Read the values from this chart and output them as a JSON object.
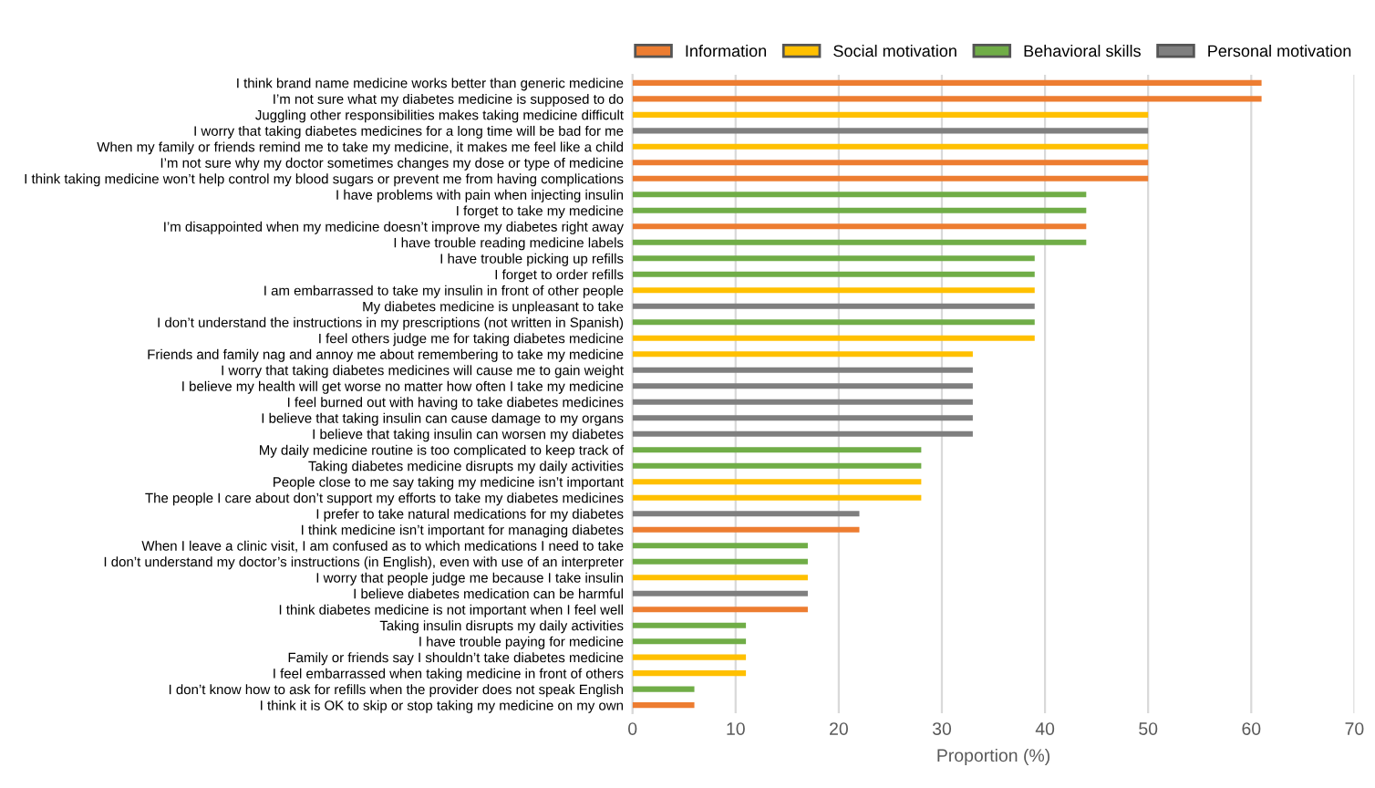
{
  "chart_data": {
    "type": "bar",
    "orientation": "horizontal",
    "xlabel": "Proportion (%)",
    "categories": [
      "I think brand name medicine works better than generic medicine",
      "I’m not sure what my diabetes medicine is supposed to do",
      "Juggling other responsibilities makes taking medicine difficult",
      "I worry that taking diabetes medicines for a long time will be bad for me",
      "When my family or friends remind me to take my medicine, it makes me feel like a child",
      "I’m not sure why my doctor sometimes changes my dose or type of medicine",
      "I think taking medicine won’t help control my blood sugars or prevent me from having complications",
      "I have problems with pain when injecting insulin",
      "I forget to take my medicine",
      "I’m disappointed when my medicine doesn’t improve my diabetes right away",
      "I have trouble reading medicine labels",
      "I have trouble picking up refills",
      "I forget to order refills",
      "I am embarrassed to take my insulin in front of other people",
      "My diabetes medicine is unpleasant to take",
      "I don’t understand the instructions in my prescriptions (not written in Spanish)",
      "I feel others judge me for taking diabetes medicine",
      "Friends and family nag and annoy me about remembering to take my medicine",
      "I worry that taking diabetes medicines will cause me to gain weight",
      "I believe my health will get worse no matter how often I take my medicine",
      "I feel burned out with having to take diabetes medicines",
      "I believe that taking insulin can cause damage to my organs",
      "I believe that taking insulin can worsen my diabetes",
      "My daily medicine routine is too complicated to keep track of",
      "Taking diabetes medicine disrupts my daily activities",
      "People close to me say taking my medicine isn’t important",
      "The people I care about don’t support my efforts to take my diabetes medicines",
      "I prefer to take natural medications for my diabetes",
      "I think medicine isn’t important for managing diabetes",
      "When I leave a clinic visit, I am confused as to which medications I need to take",
      "I don’t understand my doctor’s instructions (in English), even with use of an interpreter",
      "I worry that people judge me because I take insulin",
      "I believe diabetes medication can be harmful",
      "I think diabetes medicine is not important when I feel well",
      "Taking insulin disrupts my daily activities",
      "I have trouble paying for medicine",
      "Family or friends say I shouldn’t take diabetes medicine",
      "I feel embarrassed when taking medicine in front of others",
      "I don’t know how to ask for refills when the provider does not speak English",
      "I think it is OK to skip or stop taking my medicine on my own"
    ],
    "series": [
      {
        "name": "Information",
        "color": "#ed7d31",
        "values": [
          61,
          61,
          null,
          null,
          null,
          50,
          50,
          null,
          null,
          44,
          null,
          null,
          null,
          null,
          null,
          null,
          null,
          null,
          null,
          null,
          null,
          null,
          null,
          null,
          null,
          null,
          null,
          null,
          22,
          null,
          null,
          null,
          null,
          17,
          null,
          null,
          null,
          null,
          null,
          6
        ]
      },
      {
        "name": "Social motivation",
        "color": "#ffc000",
        "values": [
          null,
          null,
          50,
          null,
          50,
          null,
          null,
          null,
          null,
          null,
          null,
          null,
          null,
          39,
          null,
          null,
          39,
          33,
          null,
          null,
          null,
          null,
          null,
          null,
          null,
          28,
          28,
          null,
          null,
          null,
          null,
          17,
          null,
          null,
          null,
          null,
          11,
          11,
          null,
          null
        ]
      },
      {
        "name": "Behavioral skills",
        "color": "#70ad47",
        "values": [
          null,
          null,
          null,
          null,
          null,
          null,
          null,
          44,
          44,
          null,
          44,
          39,
          39,
          null,
          null,
          39,
          null,
          null,
          null,
          null,
          null,
          null,
          null,
          28,
          28,
          null,
          null,
          null,
          null,
          17,
          17,
          null,
          null,
          null,
          11,
          11,
          null,
          null,
          6,
          null
        ]
      },
      {
        "name": "Personal motivation",
        "color": "#7f7f7f",
        "values": [
          null,
          null,
          null,
          50,
          null,
          null,
          null,
          null,
          null,
          null,
          null,
          null,
          null,
          null,
          39,
          null,
          null,
          null,
          33,
          33,
          33,
          33,
          33,
          null,
          null,
          null,
          null,
          22,
          null,
          null,
          null,
          null,
          17,
          null,
          null,
          null,
          null,
          null,
          null,
          null
        ]
      }
    ],
    "xlim": [
      0,
      70
    ],
    "xticks": [
      0,
      10,
      20,
      30,
      40,
      50,
      60,
      70
    ],
    "grid": "x",
    "legend": "top"
  }
}
